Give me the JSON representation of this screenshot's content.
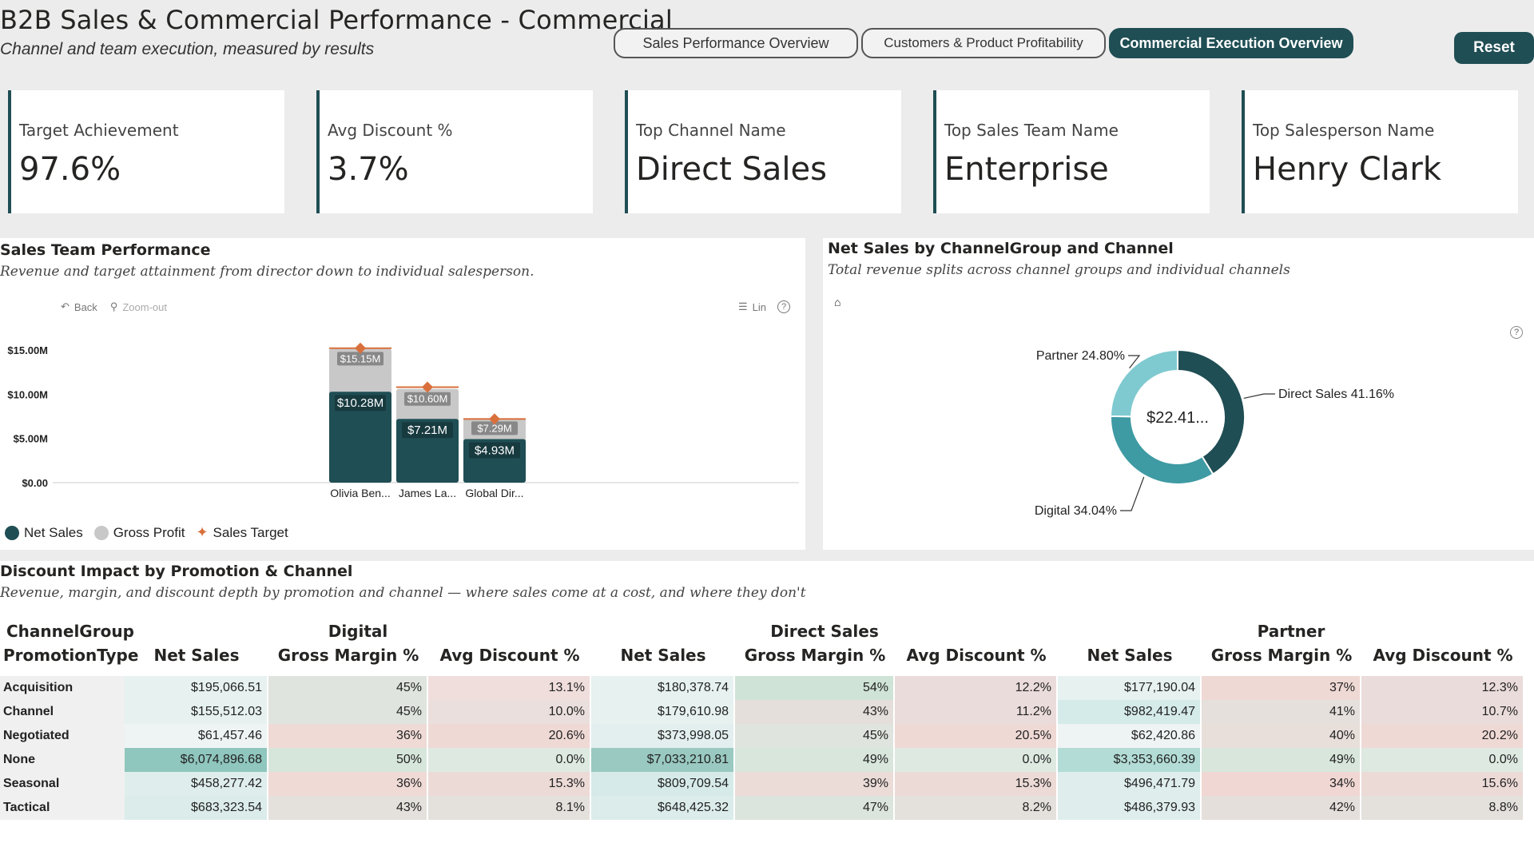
{
  "header": {
    "title": "B2B Sales & Commercial Performance - Commercial",
    "subtitle": "Channel and team execution, measured by results"
  },
  "nav": {
    "tabs": [
      {
        "label": "Sales Performance Overview",
        "active": false
      },
      {
        "label": "Customers & Product Profitability",
        "active": false
      },
      {
        "label": "Commercial Execution Overview",
        "active": true
      }
    ],
    "reset_label": "Reset"
  },
  "kpis": [
    {
      "label": "Target Achievement",
      "value": "97.6%"
    },
    {
      "label": "Avg Discount %",
      "value": "3.7%"
    },
    {
      "label": "Top Channel Name",
      "value": "Direct Sales"
    },
    {
      "label": "Top Sales Team Name",
      "value": "Enterprise"
    },
    {
      "label": "Top Salesperson Name",
      "value": "Henry Clark"
    }
  ],
  "team_panel": {
    "title": "Sales Team Performance",
    "subtitle": "Revenue and target attainment from director down to individual salesperson.",
    "toolbar": {
      "back": "Back",
      "zoom_out": "Zoom-out",
      "lin": "Lin"
    },
    "legend": [
      "Net Sales",
      "Gross Profit",
      "Sales Target"
    ]
  },
  "channel_panel": {
    "title": "Net Sales by ChannelGroup and Channel",
    "subtitle": "Total revenue splits across channel groups and individual channels",
    "center_label": "$22.41..."
  },
  "discount_panel": {
    "title": "Discount Impact by Promotion & Channel",
    "subtitle": "Revenue, margin, and discount depth by promotion and channel — where sales come at a cost, and where they don't",
    "row_header_1": "ChannelGroup",
    "row_header_2": "PromotionType",
    "groups": [
      "Digital",
      "Direct Sales",
      "Partner"
    ],
    "measures": [
      "Net Sales",
      "Gross Margin %",
      "Avg Discount %"
    ],
    "rows": [
      {
        "label": "Acquisition",
        "cells": [
          "$195,066.51",
          "45%",
          "13.1%",
          "$180,378.74",
          "54%",
          "12.2%",
          "$177,190.04",
          "37%",
          "12.3%"
        ]
      },
      {
        "label": "Channel",
        "cells": [
          "$155,512.03",
          "45%",
          "10.0%",
          "$179,610.98",
          "43%",
          "11.2%",
          "$982,419.47",
          "41%",
          "10.7%"
        ]
      },
      {
        "label": "Negotiated",
        "cells": [
          "$61,457.46",
          "36%",
          "20.6%",
          "$373,998.05",
          "45%",
          "20.5%",
          "$62,420.86",
          "40%",
          "20.2%"
        ]
      },
      {
        "label": "None",
        "cells": [
          "$6,074,896.68",
          "50%",
          "0.0%",
          "$7,033,210.81",
          "49%",
          "0.0%",
          "$3,353,660.39",
          "49%",
          "0.0%"
        ]
      },
      {
        "label": "Seasonal",
        "cells": [
          "$458,277.42",
          "36%",
          "15.3%",
          "$809,709.54",
          "39%",
          "15.3%",
          "$496,471.79",
          "34%",
          "15.6%"
        ]
      },
      {
        "label": "Tactical",
        "cells": [
          "$683,323.54",
          "43%",
          "8.1%",
          "$648,425.32",
          "47%",
          "8.2%",
          "$486,379.93",
          "42%",
          "8.8%"
        ]
      }
    ],
    "cell_colors": [
      [
        "#e6f1f0",
        "#dfe4de",
        "#efdedc",
        "#e6f1f0",
        "#cfe3d6",
        "#eadcda",
        "#e6f1f0",
        "#efd9d5",
        "#eadcda"
      ],
      [
        "#e6f1f0",
        "#dfe4de",
        "#eadfdc",
        "#e6f1f0",
        "#e5dfdb",
        "#eadcda",
        "#d5ebea",
        "#e5e0dc",
        "#eadcda"
      ],
      [
        "#eef4f3",
        "#efdad6",
        "#efd9d5",
        "#e2efee",
        "#dfe4de",
        "#efd9d5",
        "#eef4f3",
        "#e8dfdb",
        "#efd9d5"
      ],
      [
        "#8fc6bd",
        "#d7e6db",
        "#dde9e1",
        "#99c9c1",
        "#d8e6dc",
        "#dde9e1",
        "#b3dcd6",
        "#d8e6dc",
        "#dde9e1"
      ],
      [
        "#dfeeed",
        "#efdad6",
        "#ecdad6",
        "#d6ebe9",
        "#ebdcd8",
        "#ecdad6",
        "#dfeeed",
        "#f0d7d3",
        "#ecdad6"
      ],
      [
        "#dbecea",
        "#e4e1dc",
        "#e4e1dc",
        "#dbecea",
        "#dce5dd",
        "#e4e1dc",
        "#dfeeed",
        "#e5dfdb",
        "#e4e1dc"
      ]
    ]
  },
  "chart_data": [
    {
      "type": "bar",
      "categories": [
        "Olivia Ben...",
        "James La...",
        "Global Dir..."
      ],
      "series": [
        {
          "name": "Net Sales",
          "values": [
            10.28,
            7.21,
            4.93
          ],
          "labels": [
            "$10.28M",
            "$7.21M",
            "$4.93M"
          ],
          "color": "#1f4e54"
        },
        {
          "name": "Gross Profit",
          "values": [
            15.15,
            10.6,
            7.29
          ],
          "labels": [
            "$15.15M",
            "$10.60M",
            "$7.29M"
          ],
          "color": "#c8c8c8"
        },
        {
          "name": "Sales Target",
          "values": [
            15.2,
            10.8,
            7.2
          ],
          "color": "#d9703c"
        }
      ],
      "y_ticks": [
        "$15.00M",
        "$10.00M",
        "$5.00M",
        "$0.00"
      ],
      "y_tick_values": [
        15,
        10,
        5,
        0
      ],
      "ylim": [
        0,
        16
      ]
    },
    {
      "type": "pie",
      "categories": [
        "Direct Sales",
        "Digital",
        "Partner"
      ],
      "values": [
        41.16,
        34.04,
        24.8
      ],
      "labels": [
        "Direct Sales 41.16%",
        "Digital 34.04%",
        "Partner 24.80%"
      ],
      "colors": [
        "#1f4e54",
        "#3e9aa3",
        "#7fcad0"
      ]
    }
  ]
}
